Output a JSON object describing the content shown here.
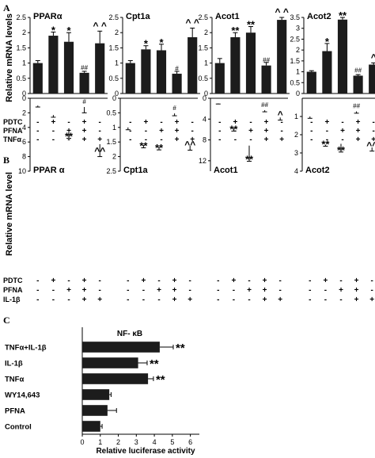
{
  "panels": [
    {
      "label": "A",
      "ylabel": "Relative mRNA levels",
      "conditions": [
        {
          "name": "PDTC",
          "marks": [
            "-",
            "+",
            "-",
            "+",
            "-"
          ]
        },
        {
          "name": "PFNA",
          "marks": [
            "-",
            "-",
            "+",
            "+",
            "-"
          ]
        },
        {
          "name": "TNFα",
          "marks": [
            "-",
            "-",
            "-",
            "+",
            "+"
          ]
        }
      ]
    },
    {
      "label": "B",
      "ylabel": "Relative mRNA level",
      "conditions": [
        {
          "name": "PDTC",
          "marks": [
            "-",
            "+",
            "-",
            "+",
            "-"
          ]
        },
        {
          "name": "PFNA",
          "marks": [
            "-",
            "-",
            "+",
            "+",
            "-"
          ]
        },
        {
          "name": "IL-1β",
          "marks": [
            "-",
            "-",
            "-",
            "+",
            "+"
          ]
        }
      ]
    },
    {
      "label": "C"
    }
  ],
  "chart_data": [
    {
      "panel": "A",
      "type": "bar",
      "title": "PPARα",
      "ylim": [
        0,
        2.5
      ],
      "yticks": [
        0,
        0.5,
        1,
        1.5,
        2,
        2.5
      ],
      "values": [
        1.0,
        1.9,
        1.7,
        0.68,
        1.65
      ],
      "errors": [
        0.08,
        0.12,
        0.3,
        0.05,
        0.4
      ],
      "annotations": [
        "",
        "*",
        "*",
        "##",
        "^ ^"
      ]
    },
    {
      "panel": "A",
      "type": "bar",
      "title": "Cpt1a",
      "ylim": [
        0,
        2.5
      ],
      "yticks": [
        0,
        0.5,
        1,
        1.5,
        2,
        2.5
      ],
      "values": [
        1.0,
        1.45,
        1.42,
        0.65,
        1.85
      ],
      "errors": [
        0.08,
        0.12,
        0.2,
        0.08,
        0.3
      ],
      "annotations": [
        "",
        "*",
        "*",
        "#",
        "^ ^"
      ]
    },
    {
      "panel": "A",
      "type": "bar",
      "title": "Acot1",
      "ylim": [
        0,
        2.5
      ],
      "yticks": [
        0,
        0.5,
        1,
        1.5,
        2,
        2.5
      ],
      "values": [
        1.0,
        1.85,
        2.0,
        0.92,
        2.42
      ],
      "errors": [
        0.15,
        0.15,
        0.2,
        0.1,
        0.12
      ],
      "annotations": [
        "",
        "**",
        "**",
        "##",
        "^ ^"
      ]
    },
    {
      "panel": "A",
      "type": "bar",
      "title": "Acot2",
      "ylim": [
        0,
        3.5
      ],
      "yticks": [
        0,
        0.5,
        1,
        1.5,
        2,
        2.5,
        3,
        3.5
      ],
      "values": [
        1.0,
        1.95,
        3.4,
        0.82,
        1.33
      ],
      "errors": [
        0.05,
        0.35,
        0.1,
        0.05,
        0.08
      ],
      "annotations": [
        "",
        "*",
        "**",
        "##",
        "^"
      ]
    },
    {
      "panel": "B",
      "type": "bar",
      "title": "PPAR α",
      "ylim": [
        0,
        10
      ],
      "yticks": [
        0,
        2,
        4,
        6,
        8,
        10
      ],
      "values": [
        1.0,
        2.3,
        4.2,
        1.2,
        6.3
      ],
      "errors": [
        0.2,
        0.3,
        1.3,
        0.8,
        1.7
      ],
      "annotations": [
        "",
        "",
        "**",
        "#",
        "^^"
      ]
    },
    {
      "panel": "B",
      "type": "bar",
      "title": "Cpt1a",
      "ylim": [
        0,
        2.5
      ],
      "yticks": [
        0,
        0.5,
        1,
        1.5,
        2,
        2.5
      ],
      "values": [
        1.0,
        1.6,
        1.67,
        0.52,
        1.63
      ],
      "errors": [
        0.08,
        0.1,
        0.1,
        0.08,
        0.15
      ],
      "annotations": [
        "",
        "**",
        "**",
        "#",
        "^^"
      ]
    },
    {
      "panel": "B",
      "type": "bar",
      "title": "Acot1",
      "ylim": [
        0,
        14
      ],
      "yticks": [
        0,
        4,
        8,
        12
      ],
      "values": [
        1.0,
        5.7,
        9.1,
        2.3,
        3.7
      ],
      "errors": [
        0.1,
        0.6,
        3.0,
        0.3,
        0.5
      ],
      "annotations": [
        "",
        "**",
        "**",
        "##",
        "^"
      ]
    },
    {
      "panel": "B",
      "type": "bar",
      "title": "Acot2",
      "ylim": [
        0,
        4
      ],
      "yticks": [
        1,
        2,
        3,
        4
      ],
      "values": [
        1.0,
        2.55,
        2.5,
        0.72,
        2.7
      ],
      "errors": [
        0.1,
        0.08,
        0.45,
        0.1,
        0.2
      ],
      "annotations": [
        "",
        "**",
        "**",
        "##",
        "^^"
      ]
    },
    {
      "panel": "C",
      "type": "bar",
      "orientation": "horizontal",
      "title": "NF- κB",
      "xlabel": "Relative luciferase activity",
      "xlim": [
        0,
        6.5
      ],
      "xticks": [
        0,
        1,
        2,
        3,
        4,
        5,
        6
      ],
      "categories": [
        "TNFα+IL-1β",
        "IL-1β",
        "TNFα",
        "WY14,643",
        "PFNA",
        "Control"
      ],
      "values": [
        4.3,
        3.1,
        3.65,
        1.5,
        1.4,
        1.0
      ],
      "errors": [
        0.75,
        0.5,
        0.3,
        0.1,
        0.5,
        0.1
      ],
      "annotations": [
        "**",
        "**",
        "**",
        "",
        "",
        ""
      ]
    }
  ]
}
